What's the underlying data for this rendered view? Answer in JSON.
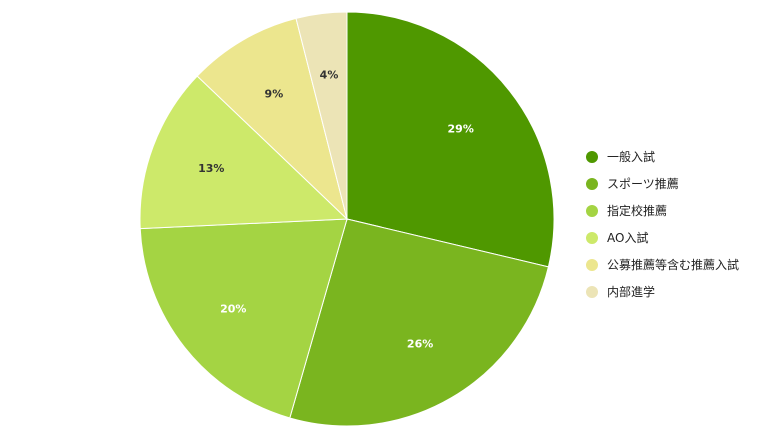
{
  "chart_data": {
    "type": "pie",
    "title": "",
    "legend_position": "right",
    "slices": [
      {
        "label": "一般入試",
        "value": 29,
        "value_label": "29%",
        "color": "#4f9800",
        "label_color": "#ffffff"
      },
      {
        "label": "スポーツ推薦",
        "value": 26,
        "value_label": "26%",
        "color": "#7ab51f",
        "label_color": "#ffffff"
      },
      {
        "label": "指定校推薦",
        "value": 20,
        "value_label": "20%",
        "color": "#a4d443",
        "label_color": "#ffffff"
      },
      {
        "label": "AO入試",
        "value": 13,
        "value_label": "13%",
        "color": "#cde96a",
        "label_color": "#333333"
      },
      {
        "label": "公募推薦等含む推薦入試",
        "value": 9,
        "value_label": "9%",
        "color": "#ece68e",
        "label_color": "#333333"
      },
      {
        "label": "内部進学",
        "value": 4,
        "value_label": "4%",
        "color": "#ece4b6",
        "label_color": "#333333"
      }
    ]
  }
}
